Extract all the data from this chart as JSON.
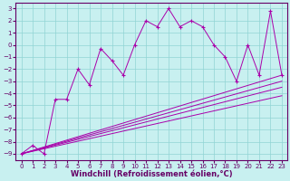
{
  "xlabel": "Windchill (Refroidissement éolien,°C)",
  "xlim": [
    -0.5,
    23.5
  ],
  "ylim": [
    -9.5,
    3.5
  ],
  "xticks": [
    0,
    1,
    2,
    3,
    4,
    5,
    6,
    7,
    8,
    9,
    10,
    11,
    12,
    13,
    14,
    15,
    16,
    17,
    18,
    19,
    20,
    21,
    22,
    23
  ],
  "yticks": [
    3,
    2,
    1,
    0,
    -1,
    -2,
    -3,
    -4,
    -5,
    -6,
    -7,
    -8,
    -9
  ],
  "background_color": "#c8f0f0",
  "grid_color": "#90d4d4",
  "line_color": "#aa00aa",
  "scatter_x": [
    0,
    1,
    2,
    3,
    4,
    5,
    6,
    7,
    8,
    9,
    10,
    11,
    12,
    13,
    14,
    15,
    16,
    17,
    18,
    19,
    20,
    21,
    22,
    23
  ],
  "scatter_y": [
    -9,
    -8.3,
    -9,
    -4.5,
    -4.5,
    -2,
    -3.3,
    -0.3,
    -1.3,
    -2.5,
    0,
    2,
    1.5,
    3,
    1.5,
    2,
    1.5,
    0,
    -1,
    -3,
    0,
    -2.5,
    2.8,
    -2.5
  ],
  "trend_lines": [
    {
      "x": [
        0,
        23
      ],
      "y": [
        -9,
        -2.5
      ]
    },
    {
      "x": [
        0,
        23
      ],
      "y": [
        -9,
        -3.0
      ]
    },
    {
      "x": [
        0,
        23
      ],
      "y": [
        -9,
        -3.5
      ]
    },
    {
      "x": [
        0,
        23
      ],
      "y": [
        -9,
        -4.2
      ]
    }
  ],
  "xlabel_color": "#660066",
  "xlabel_fontsize": 6,
  "tick_fontsize": 5,
  "tick_color": "#660066",
  "spine_color": "#660066"
}
